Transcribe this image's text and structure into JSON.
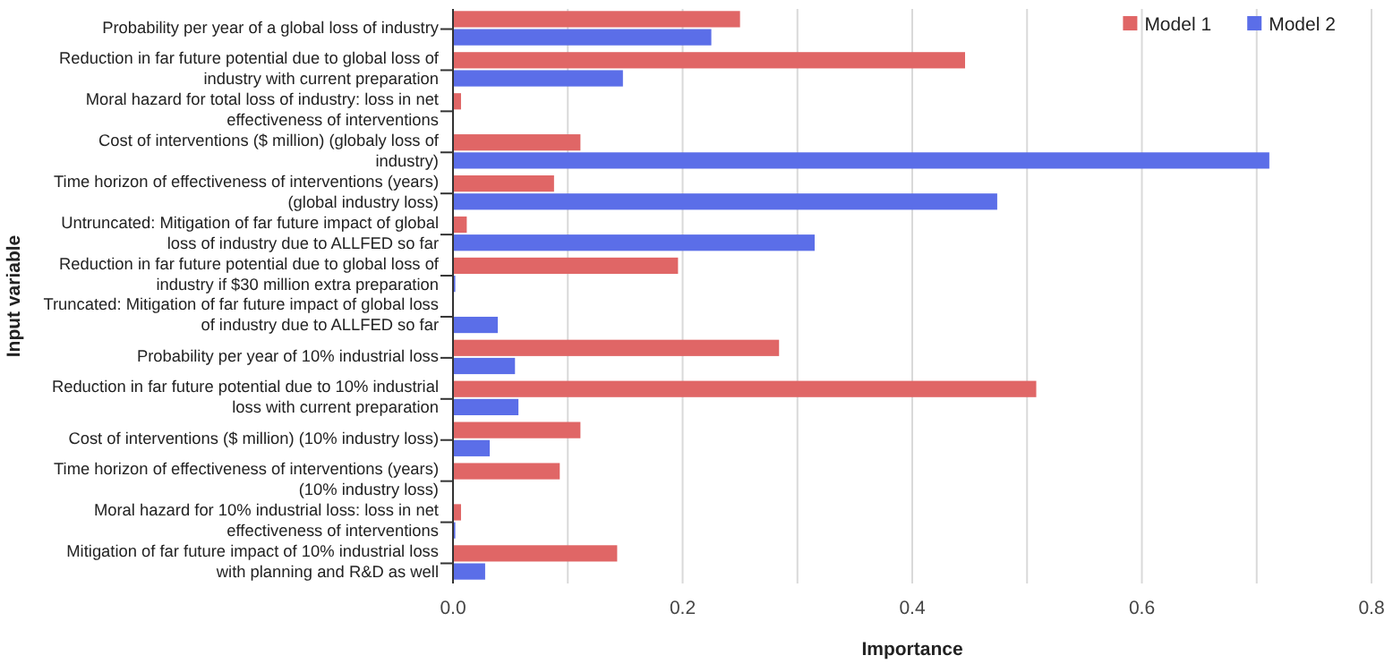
{
  "chart_data": {
    "type": "bar",
    "orientation": "horizontal",
    "xlabel": "Importance",
    "ylabel": "Input variable",
    "categories": [
      "Probability per year of a global loss of industry",
      "Reduction in far future potential due to global loss of industry with current preparation",
      "Moral hazard for total loss of industry: loss in net effectiveness of interventions",
      "Cost of interventions ($ million) (globaly loss of industry)",
      "Time horizon of effectiveness of interventions (years) (global industry loss)",
      "Untruncated: Mitigation of far future impact of global loss of industry due to ALLFED so far",
      "Reduction in far future potential due to global loss of industry if $30 million extra preparation",
      "Truncated: Mitigation of far future impact of global loss of industry due to ALLFED so far",
      "Probability per year of 10% industrial loss",
      "Reduction in far future potential due to 10% industrial loss with current preparation",
      "Cost of interventions ($ million) (10% industry loss)",
      "Time horizon of effectiveness of interventions (years) (10% industry loss)",
      "Moral hazard for 10% industrial loss: loss in net effectiveness of interventions",
      "Mitigation of far future impact of 10% industrial loss with planning and R&D as well"
    ],
    "series": [
      {
        "name": "Model 1",
        "color": "#e06666",
        "values": [
          0.25,
          0.446,
          0.007,
          0.111,
          0.088,
          0.012,
          0.196,
          0,
          0.284,
          0.508,
          0.111,
          0.093,
          0.007,
          0.143
        ]
      },
      {
        "name": "Model 2",
        "color": "#5b6ee8",
        "values": [
          0.225,
          0.148,
          0,
          0.711,
          0.474,
          0.315,
          0.002,
          0.039,
          0.054,
          0.057,
          0.032,
          0,
          0.002,
          0.028
        ]
      }
    ],
    "xlim": [
      0,
      0.8
    ],
    "xticks": [
      {
        "value": 0,
        "label": "0.0"
      },
      {
        "value": 0.1,
        "label": null
      },
      0.2,
      {
        "value": 0.3,
        "label": null
      },
      0.4,
      {
        "value": 0.5,
        "label": null
      },
      0.6,
      {
        "value": 0.7,
        "label": null
      },
      0.8
    ],
    "grid": "x",
    "legend": "top right"
  }
}
